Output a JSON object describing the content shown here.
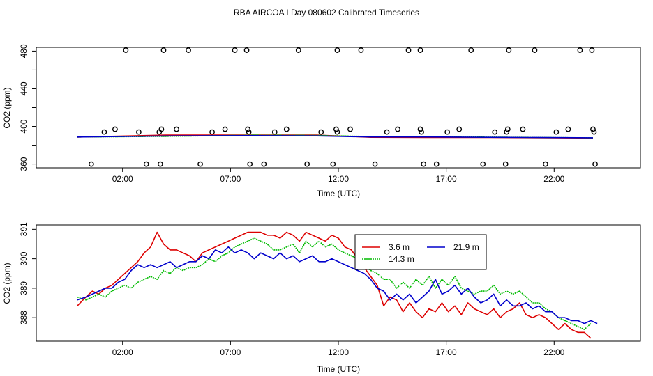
{
  "page_title": "RBA AIRCOA I  Day 080602  Calibrated Timeseries",
  "chart_data": [
    {
      "type": "scatter",
      "xlabel": "Time (UTC)",
      "ylabel": "CO2 (ppm)",
      "x_unit": "hours",
      "xlim": [
        -2.0,
        26.0
      ],
      "ylim": [
        356,
        484
      ],
      "xticks": [
        2,
        7,
        12,
        17,
        22
      ],
      "xtick_labels": [
        "02:00",
        "07:00",
        "12:00",
        "17:00",
        "22:00"
      ],
      "yticks": [
        360,
        400,
        440,
        480
      ],
      "ytick_labels": [
        "360",
        "400",
        "440",
        "480"
      ],
      "yticks_minor": [
        380,
        420,
        460
      ],
      "points": [
        {
          "x": 0.55,
          "y": 360
        },
        {
          "x": 1.15,
          "y": 394
        },
        {
          "x": 1.65,
          "y": 397
        },
        {
          "x": 2.15,
          "y": 481
        },
        {
          "x": 2.75,
          "y": 394
        },
        {
          "x": 3.1,
          "y": 360
        },
        {
          "x": 3.7,
          "y": 394
        },
        {
          "x": 3.8,
          "y": 397
        },
        {
          "x": 3.9,
          "y": 481
        },
        {
          "x": 3.75,
          "y": 360
        },
        {
          "x": 4.5,
          "y": 397
        },
        {
          "x": 5.05,
          "y": 481
        },
        {
          "x": 5.6,
          "y": 360
        },
        {
          "x": 6.15,
          "y": 394
        },
        {
          "x": 6.75,
          "y": 397
        },
        {
          "x": 7.2,
          "y": 481
        },
        {
          "x": 7.75,
          "y": 481
        },
        {
          "x": 7.8,
          "y": 397
        },
        {
          "x": 7.85,
          "y": 394
        },
        {
          "x": 7.9,
          "y": 360
        },
        {
          "x": 8.55,
          "y": 360
        },
        {
          "x": 9.05,
          "y": 394
        },
        {
          "x": 9.6,
          "y": 397
        },
        {
          "x": 10.15,
          "y": 481
        },
        {
          "x": 10.55,
          "y": 360
        },
        {
          "x": 11.2,
          "y": 394
        },
        {
          "x": 11.75,
          "y": 360
        },
        {
          "x": 11.9,
          "y": 397
        },
        {
          "x": 11.95,
          "y": 394
        },
        {
          "x": 11.95,
          "y": 481
        },
        {
          "x": 12.55,
          "y": 397
        },
        {
          "x": 13.05,
          "y": 481
        },
        {
          "x": 13.7,
          "y": 360
        },
        {
          "x": 14.25,
          "y": 394
        },
        {
          "x": 14.75,
          "y": 397
        },
        {
          "x": 15.25,
          "y": 481
        },
        {
          "x": 15.8,
          "y": 481
        },
        {
          "x": 15.8,
          "y": 397
        },
        {
          "x": 15.85,
          "y": 394
        },
        {
          "x": 15.95,
          "y": 360
        },
        {
          "x": 16.55,
          "y": 360
        },
        {
          "x": 17.05,
          "y": 394
        },
        {
          "x": 17.6,
          "y": 397
        },
        {
          "x": 18.15,
          "y": 481
        },
        {
          "x": 18.7,
          "y": 360
        },
        {
          "x": 19.25,
          "y": 394
        },
        {
          "x": 19.75,
          "y": 360
        },
        {
          "x": 19.8,
          "y": 394
        },
        {
          "x": 19.85,
          "y": 397
        },
        {
          "x": 19.9,
          "y": 481
        },
        {
          "x": 20.55,
          "y": 397
        },
        {
          "x": 21.1,
          "y": 481
        },
        {
          "x": 21.6,
          "y": 360
        },
        {
          "x": 22.1,
          "y": 394
        },
        {
          "x": 22.65,
          "y": 397
        },
        {
          "x": 23.2,
          "y": 481
        },
        {
          "x": 23.75,
          "y": 481
        },
        {
          "x": 23.8,
          "y": 397
        },
        {
          "x": 23.85,
          "y": 394
        },
        {
          "x": 23.9,
          "y": 360
        }
      ],
      "series": [
        {
          "name": "3.6 m",
          "color": "#dd0000",
          "x": [
            -0.1,
            4,
            8,
            11,
            13.5,
            16,
            19,
            23.8
          ],
          "y": [
            388.6,
            390.8,
            390.8,
            390.8,
            388.4,
            388.2,
            388.2,
            387.6
          ]
        },
        {
          "name": "14.3 m",
          "color": "#00bb00",
          "x": [
            -0.1,
            4,
            8,
            11,
            13.5,
            16,
            19,
            23.8
          ],
          "y": [
            388.7,
            389.4,
            390.6,
            390.4,
            389.2,
            389.0,
            388.6,
            387.8
          ]
        },
        {
          "name": "21.9 m",
          "color": "#0000cc",
          "x": [
            -0.1,
            4,
            8,
            11,
            13.5,
            16,
            19,
            23.8
          ],
          "y": [
            388.7,
            389.8,
            390.2,
            389.9,
            388.8,
            388.8,
            388.4,
            387.9
          ]
        }
      ]
    },
    {
      "type": "line",
      "xlabel": "Time (UTC)",
      "ylabel": "CO2 (ppm)",
      "x_unit": "hours",
      "xlim": [
        -2.0,
        26.0
      ],
      "ylim": [
        387.2,
        391.15
      ],
      "xticks": [
        2,
        7,
        12,
        17,
        22
      ],
      "xtick_labels": [
        "02:00",
        "07:00",
        "12:00",
        "17:00",
        "22:00"
      ],
      "yticks": [
        388,
        389,
        390,
        391
      ],
      "ytick_labels": [
        "388",
        "389",
        "390",
        "391"
      ],
      "legend": {
        "position": "top-right",
        "entries": [
          "3.6 m",
          "21.9 m",
          "14.3 m"
        ]
      },
      "series": [
        {
          "name": "3.6 m",
          "color": "#dd0000",
          "x": [
            -0.1,
            0.3,
            0.6,
            0.9,
            1.2,
            1.5,
            1.8,
            2.1,
            2.4,
            2.7,
            3.0,
            3.3,
            3.6,
            3.9,
            4.2,
            4.5,
            4.8,
            5.1,
            5.4,
            5.7,
            6.0,
            6.3,
            6.6,
            6.9,
            7.2,
            7.5,
            7.8,
            8.1,
            8.4,
            8.7,
            9.0,
            9.3,
            9.6,
            9.9,
            10.2,
            10.5,
            10.8,
            11.1,
            11.4,
            11.7,
            12.0,
            12.3,
            12.6,
            12.9,
            13.2,
            13.5,
            13.8,
            14.1,
            14.4,
            14.7,
            15.0,
            15.3,
            15.6,
            15.9,
            16.2,
            16.5,
            16.8,
            17.1,
            17.4,
            17.7,
            18.0,
            18.3,
            18.6,
            18.9,
            19.2,
            19.5,
            19.8,
            20.1,
            20.4,
            20.7,
            21.0,
            21.3,
            21.6,
            21.9,
            22.2,
            22.5,
            22.8,
            23.1,
            23.4,
            23.7
          ],
          "y": [
            388.4,
            388.7,
            388.9,
            388.8,
            389.0,
            389.1,
            389.3,
            389.5,
            389.7,
            389.9,
            390.2,
            390.4,
            390.9,
            390.5,
            390.3,
            390.3,
            390.2,
            390.1,
            389.9,
            390.2,
            390.3,
            390.4,
            390.5,
            390.6,
            390.7,
            390.8,
            390.9,
            390.9,
            390.9,
            390.8,
            390.8,
            390.7,
            390.9,
            390.8,
            390.6,
            390.9,
            390.8,
            390.7,
            390.6,
            390.8,
            390.7,
            390.4,
            390.3,
            390.0,
            389.7,
            389.4,
            389.1,
            388.4,
            388.7,
            388.6,
            388.2,
            388.5,
            388.2,
            388.0,
            388.3,
            388.2,
            388.5,
            388.2,
            388.4,
            388.1,
            388.5,
            388.3,
            388.2,
            388.1,
            388.3,
            388.0,
            388.2,
            388.3,
            388.5,
            388.1,
            388.0,
            388.1,
            388.0,
            387.8,
            387.6,
            387.8,
            387.6,
            387.5,
            387.5,
            387.3
          ]
        },
        {
          "name": "14.3 m",
          "color": "#00bb00",
          "x": [
            -0.1,
            0.3,
            0.6,
            0.9,
            1.2,
            1.5,
            1.8,
            2.1,
            2.4,
            2.7,
            3.0,
            3.3,
            3.6,
            3.9,
            4.2,
            4.5,
            4.8,
            5.1,
            5.4,
            5.7,
            6.0,
            6.3,
            6.6,
            6.9,
            7.2,
            7.5,
            7.8,
            8.1,
            8.4,
            8.7,
            9.0,
            9.3,
            9.6,
            9.9,
            10.2,
            10.5,
            10.8,
            11.1,
            11.4,
            11.7,
            12.0,
            12.3,
            12.6,
            12.9,
            13.2,
            13.5,
            13.8,
            14.1,
            14.4,
            14.7,
            15.0,
            15.3,
            15.6,
            15.9,
            16.2,
            16.5,
            16.8,
            17.1,
            17.4,
            17.7,
            18.0,
            18.3,
            18.6,
            18.9,
            19.2,
            19.5,
            19.8,
            20.1,
            20.4,
            20.7,
            21.0,
            21.3,
            21.6,
            21.9,
            22.2,
            22.5,
            22.8,
            23.1,
            23.4,
            23.7
          ],
          "y": [
            388.7,
            388.6,
            388.7,
            388.8,
            388.7,
            388.9,
            389.0,
            389.1,
            389.0,
            389.2,
            389.3,
            389.4,
            389.3,
            389.6,
            389.5,
            389.7,
            389.6,
            389.7,
            389.7,
            389.8,
            390.0,
            389.9,
            390.1,
            390.2,
            390.4,
            390.5,
            390.6,
            390.7,
            390.6,
            390.5,
            390.3,
            390.3,
            390.4,
            390.5,
            390.2,
            390.6,
            390.4,
            390.6,
            390.4,
            390.5,
            390.3,
            390.2,
            390.1,
            390.0,
            389.8,
            389.6,
            389.5,
            389.3,
            389.3,
            389.0,
            389.2,
            389.0,
            389.3,
            389.1,
            389.4,
            389.0,
            389.3,
            389.1,
            389.4,
            389.0,
            388.9,
            388.8,
            388.9,
            388.9,
            389.1,
            388.8,
            388.9,
            388.8,
            388.9,
            388.7,
            388.5,
            388.5,
            388.3,
            388.2,
            388.0,
            387.9,
            387.8,
            387.7,
            387.6,
            387.8
          ]
        },
        {
          "name": "21.9 m",
          "color": "#0000cc",
          "x": [
            -0.1,
            0.3,
            0.6,
            0.9,
            1.2,
            1.5,
            1.8,
            2.1,
            2.4,
            2.7,
            3.0,
            3.3,
            3.6,
            3.9,
            4.2,
            4.5,
            4.8,
            5.1,
            5.4,
            5.7,
            6.0,
            6.3,
            6.6,
            6.9,
            7.2,
            7.5,
            7.8,
            8.1,
            8.4,
            8.7,
            9.0,
            9.3,
            9.6,
            9.9,
            10.2,
            10.5,
            10.8,
            11.1,
            11.4,
            11.7,
            12.0,
            12.3,
            12.6,
            12.9,
            13.2,
            13.5,
            13.8,
            14.1,
            14.4,
            14.7,
            15.0,
            15.3,
            15.6,
            15.9,
            16.2,
            16.5,
            16.8,
            17.1,
            17.4,
            17.7,
            18.0,
            18.3,
            18.6,
            18.9,
            19.2,
            19.5,
            19.8,
            20.1,
            20.4,
            20.7,
            21.0,
            21.3,
            21.6,
            21.9,
            22.2,
            22.5,
            22.8,
            23.1,
            23.4,
            23.7,
            24.0
          ],
          "y": [
            388.6,
            388.7,
            388.8,
            388.9,
            389.0,
            389.0,
            389.2,
            389.3,
            389.6,
            389.8,
            389.7,
            389.8,
            389.7,
            389.8,
            389.9,
            389.7,
            389.8,
            389.9,
            389.9,
            390.1,
            390.0,
            390.3,
            390.2,
            390.4,
            390.2,
            390.3,
            390.2,
            390.0,
            390.2,
            390.1,
            390.0,
            390.2,
            390.0,
            390.1,
            389.9,
            390.0,
            390.1,
            389.9,
            389.9,
            390.0,
            389.9,
            389.8,
            389.7,
            389.6,
            389.5,
            389.3,
            389.0,
            388.9,
            388.6,
            388.8,
            388.6,
            388.8,
            388.5,
            388.7,
            388.9,
            389.3,
            388.8,
            388.9,
            389.1,
            388.8,
            389.0,
            388.7,
            388.5,
            388.6,
            388.8,
            388.4,
            388.6,
            388.4,
            388.4,
            388.5,
            388.3,
            388.4,
            388.2,
            388.2,
            388.0,
            388.0,
            387.9,
            387.9,
            387.8,
            387.9,
            387.8
          ]
        }
      ]
    }
  ]
}
